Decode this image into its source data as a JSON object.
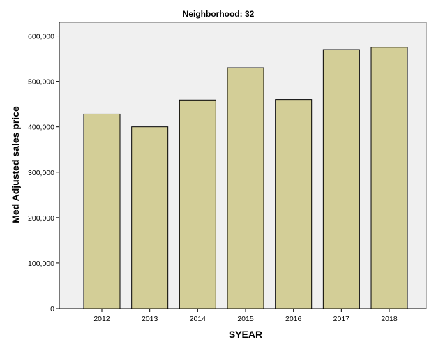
{
  "chart_data": {
    "type": "bar",
    "title": "Neighborhood: 32",
    "xlabel": "SYEAR",
    "ylabel": "Med Adjusted sales price",
    "categories": [
      "2012",
      "2013",
      "2014",
      "2015",
      "2016",
      "2017",
      "2018"
    ],
    "values": [
      428000,
      400000,
      459000,
      530000,
      460000,
      570000,
      575000
    ],
    "ylim": [
      0,
      630000
    ],
    "yticks": [
      0,
      100000,
      200000,
      300000,
      400000,
      500000,
      600000
    ],
    "ytick_labels": [
      "0",
      "100,000",
      "200,000",
      "300,000",
      "400,000",
      "500,000",
      "600,000"
    ],
    "grid": false,
    "legend": "none"
  },
  "colors": {
    "bar_fill": "#d3ce97",
    "plot_background": "#f0f0f0",
    "bar_stroke": "#000000"
  }
}
